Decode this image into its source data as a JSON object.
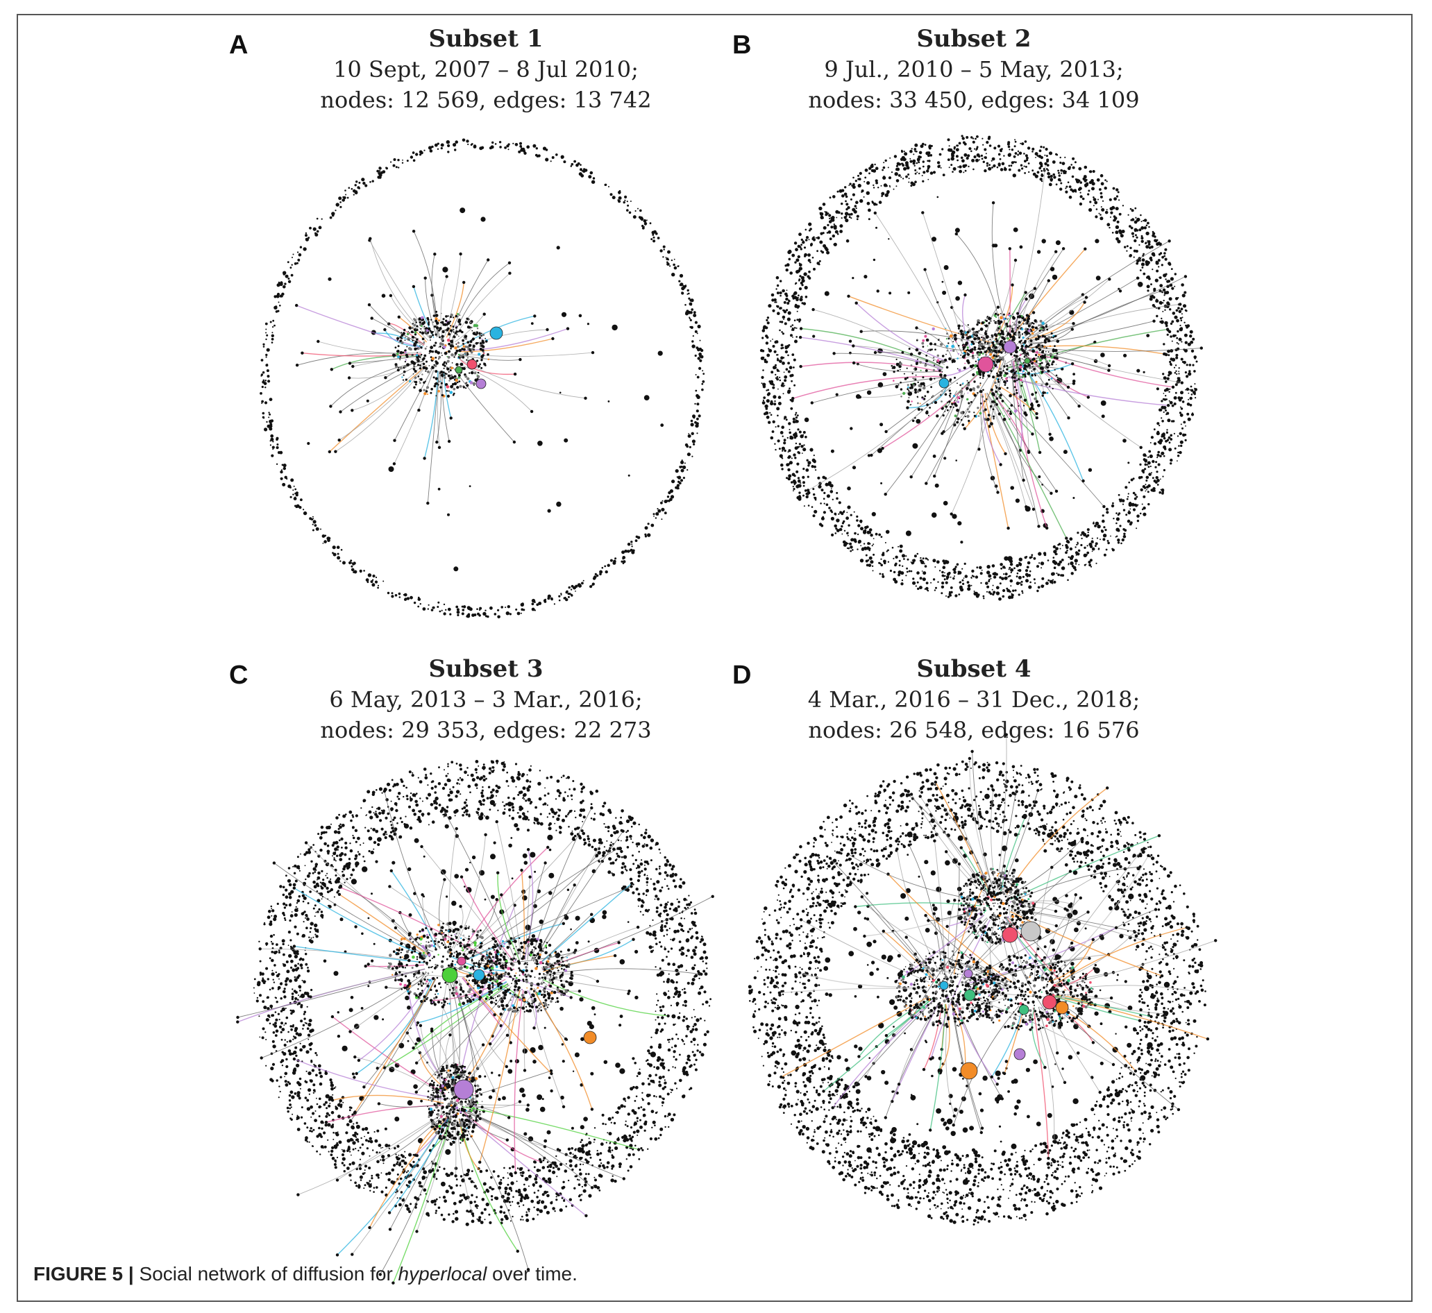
{
  "figure": {
    "label": "FIGURE 5 |",
    "caption_before": "Social network of diffusion for",
    "caption_term": "hyperlocal",
    "caption_after": "over time."
  },
  "panels": [
    {
      "letter": "A",
      "title": "Subset 1",
      "date_range": "10 Sept, 2007 – 8 Jul 2010;",
      "stats": "nodes: 12 569, edges: 13 742",
      "nodes": 12569,
      "edges": 13742,
      "colors": [
        "#2ab3e0",
        "#f0506e",
        "#b57fd6",
        "#4caf50",
        "#f28c28"
      ]
    },
    {
      "letter": "B",
      "title": "Subset 2",
      "date_range": "9 Jul., 2010 – 5 May, 2013;",
      "stats": "nodes: 33 450, edges: 34 109",
      "nodes": 33450,
      "edges": 34109,
      "colors": [
        "#2ab3e0",
        "#e0549b",
        "#b57fd6",
        "#4caf50",
        "#f28c28"
      ]
    },
    {
      "letter": "C",
      "title": "Subset 3",
      "date_range": "6 May, 2013 – 3 Mar., 2016;",
      "stats": "nodes: 29 353, edges: 22 273",
      "nodes": 29353,
      "edges": 22273,
      "colors": [
        "#4cd03a",
        "#2ab3e0",
        "#b57fd6",
        "#f28c28",
        "#e0549b"
      ]
    },
    {
      "letter": "D",
      "title": "Subset 4",
      "date_range": "4 Mar., 2016 – 31 Dec., 2018;",
      "stats": "nodes: 26 548, edges: 16 576",
      "nodes": 26548,
      "edges": 16576,
      "colors": [
        "#f0506e",
        "#f28c28",
        "#b57fd6",
        "#3fbf7f",
        "#2ab3e0",
        "#c8c8c8"
      ]
    }
  ]
}
